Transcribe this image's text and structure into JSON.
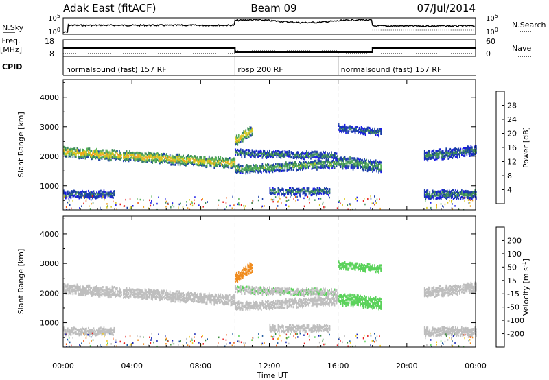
{
  "header": {
    "radar": "Adak East (fitACF)",
    "beam": "Beam 09",
    "date": "07/Jul/2014"
  },
  "left_labels": {
    "nsky": "N.Sky",
    "freq_a": "Freq.",
    "freq_b": "[MHz]",
    "cpid": "CPID"
  },
  "right_labels": {
    "nsearch": "N.Search",
    "nave": "Nave"
  },
  "strip_ticks": {
    "noise_left": [
      "10^5",
      "10^0"
    ],
    "noise_right": [
      "10^5",
      "10^0"
    ],
    "freq_left": [
      "18",
      "8"
    ],
    "freq_right": [
      "60",
      "0"
    ]
  },
  "cpid_segments": [
    {
      "label": "normalsound (fast) 157 RF",
      "start_h": 0
    },
    {
      "label": "rbsp 200 RF",
      "start_h": 10
    },
    {
      "label": "normalsound (fast) 157 RF",
      "start_h": 16
    }
  ],
  "x_ticks": [
    "00:00",
    "04:00",
    "08:00",
    "12:00",
    "16:00",
    "20:00",
    "00:00"
  ],
  "x_label": "Time UT",
  "y_label": "Slant Range [km]",
  "y_ticks": [
    "1000",
    "2000",
    "3000",
    "4000"
  ],
  "power_scale": {
    "label": "Power [dB]",
    "ticks": [
      "4",
      "8",
      "12",
      "16",
      "20",
      "24",
      "28"
    ],
    "colors": [
      "#1a1ae6",
      "#1a3da8",
      "#3e8c5a",
      "#5ab45a",
      "#d8c81e",
      "#f0a020",
      "#f05a14",
      "#e61e1e"
    ]
  },
  "velocity_scale": {
    "label": "Velocity [m s^-1]",
    "ticks": [
      "200",
      "100",
      "50",
      "15",
      "-15",
      "-50",
      "-100",
      "-200"
    ],
    "colors": [
      "#1a28b4",
      "#1f5aa0",
      "#3c8c3c",
      "#5ad25a",
      "#bebebe",
      "#f0c81e",
      "#f08c1e",
      "#f05a14",
      "#e61e1e"
    ]
  },
  "chart_data": {
    "type": "heatmap",
    "title": "Adak East (fitACF) Beam 09 07/Jul/2014",
    "xlabel": "Time UT",
    "ylabel": "Slant Range [km]",
    "xlim_hours": [
      0,
      24
    ],
    "ylim_km": [
      180,
      4600
    ],
    "panels": [
      "Power [dB]",
      "Velocity [m s^-1]"
    ],
    "frequency_mhz": [
      {
        "start_h": 0,
        "end_h": 10,
        "value": 13
      },
      {
        "start_h": 10,
        "end_h": 18,
        "value": 10.5
      },
      {
        "start_h": 18,
        "end_h": 24,
        "value": 13
      }
    ],
    "nave": [
      {
        "start_h": 0,
        "end_h": 10,
        "value": 10
      },
      {
        "start_h": 10,
        "end_h": 16,
        "value": 20
      },
      {
        "start_h": 16,
        "end_h": 24,
        "value": 10
      }
    ],
    "bands": [
      {
        "start_h": 0.0,
        "end_h": 10.0,
        "center_km_start": 2150,
        "center_km_end": 1750,
        "width_km": 300,
        "power_db": 20,
        "velocity": -5
      },
      {
        "start_h": 10.0,
        "end_h": 16.0,
        "center_km_start": 1550,
        "center_km_end": 1750,
        "width_km": 250,
        "power_db": 14,
        "velocity": -5
      },
      {
        "start_h": 10.0,
        "end_h": 16.0,
        "center_km_start": 2100,
        "center_km_end": 2000,
        "width_km": 200,
        "power_db": 10,
        "velocity": 10
      },
      {
        "start_h": 16.0,
        "end_h": 18.5,
        "center_km_start": 1800,
        "center_km_end": 1650,
        "width_km": 350,
        "power_db": 12,
        "velocity": 30
      },
      {
        "start_h": 16.0,
        "end_h": 18.5,
        "center_km_start": 2950,
        "center_km_end": 2800,
        "width_km": 200,
        "power_db": 8,
        "velocity": 40
      },
      {
        "start_h": 10.0,
        "end_h": 11.0,
        "center_km_start": 2500,
        "center_km_end": 2900,
        "width_km": 300,
        "power_db": 20,
        "velocity": -60
      },
      {
        "start_h": 21.0,
        "end_h": 24.0,
        "center_km_start": 2000,
        "center_km_end": 2200,
        "width_km": 300,
        "power_db": 10,
        "velocity": -5
      },
      {
        "start_h": 0.0,
        "end_h": 3.0,
        "center_km_start": 700,
        "center_km_end": 700,
        "width_km": 200,
        "power_db": 8,
        "velocity": -5
      },
      {
        "start_h": 12.0,
        "end_h": 15.5,
        "center_km_start": 800,
        "center_km_end": 800,
        "width_km": 200,
        "power_db": 10,
        "velocity": -5
      },
      {
        "start_h": 21.0,
        "end_h": 24.0,
        "center_km_start": 700,
        "center_km_end": 700,
        "width_km": 250,
        "power_db": 10,
        "velocity": -5
      }
    ]
  }
}
